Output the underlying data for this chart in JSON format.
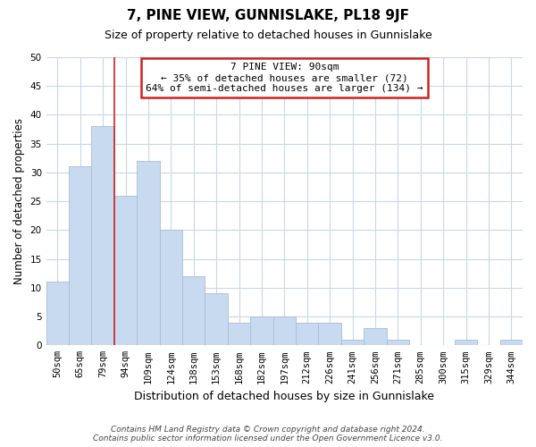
{
  "title": "7, PINE VIEW, GUNNISLAKE, PL18 9JF",
  "subtitle": "Size of property relative to detached houses in Gunnislake",
  "xlabel": "Distribution of detached houses by size in Gunnislake",
  "ylabel": "Number of detached properties",
  "footer_line1": "Contains HM Land Registry data © Crown copyright and database right 2024.",
  "footer_line2": "Contains public sector information licensed under the Open Government Licence v3.0.",
  "categories": [
    "50sqm",
    "65sqm",
    "79sqm",
    "94sqm",
    "109sqm",
    "124sqm",
    "138sqm",
    "153sqm",
    "168sqm",
    "182sqm",
    "197sqm",
    "212sqm",
    "226sqm",
    "241sqm",
    "256sqm",
    "271sqm",
    "285sqm",
    "300sqm",
    "315sqm",
    "329sqm",
    "344sqm"
  ],
  "values": [
    11,
    31,
    38,
    26,
    32,
    20,
    12,
    9,
    4,
    5,
    5,
    4,
    4,
    1,
    3,
    1,
    0,
    0,
    1,
    0,
    1
  ],
  "bar_color": "#c8daf0",
  "bar_edge_color": "#aabcd8",
  "vline_color": "#cc2222",
  "ylim": [
    0,
    50
  ],
  "yticks": [
    0,
    5,
    10,
    15,
    20,
    25,
    30,
    35,
    40,
    45,
    50
  ],
  "annotation_title": "7 PINE VIEW: 90sqm",
  "annotation_line1": "← 35% of detached houses are smaller (72)",
  "annotation_line2": "64% of semi-detached houses are larger (134) →",
  "background_color": "#ffffff",
  "grid_color": "#c8d8e8",
  "vline_index": 2.5
}
